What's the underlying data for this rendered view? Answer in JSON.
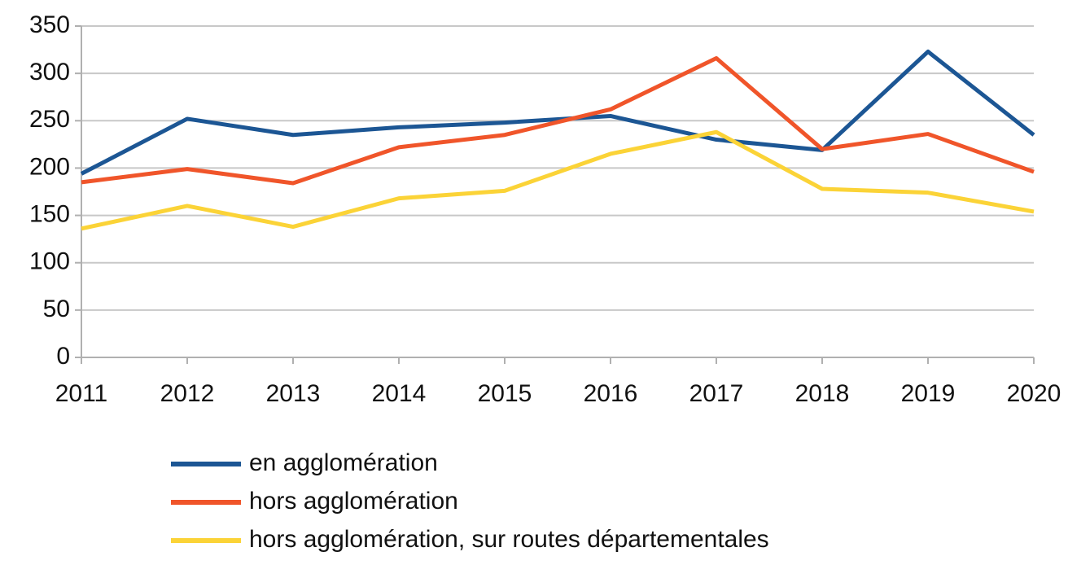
{
  "chart_data": {
    "type": "line",
    "categories": [
      "2011",
      "2012",
      "2013",
      "2014",
      "2015",
      "2016",
      "2017",
      "2018",
      "2019",
      "2020"
    ],
    "series": [
      {
        "name": "en agglomération",
        "color": "#1c5694",
        "values": [
          194,
          252,
          235,
          243,
          248,
          255,
          230,
          219,
          323,
          235
        ]
      },
      {
        "name": "hors agglomération",
        "color": "#f0552a",
        "values": [
          185,
          199,
          184,
          222,
          235,
          262,
          316,
          220,
          236,
          196
        ]
      },
      {
        "name": "hors agglomération, sur routes départementales",
        "color": "#fbd337",
        "values": [
          136,
          160,
          138,
          168,
          176,
          215,
          238,
          178,
          174,
          154
        ]
      }
    ],
    "ylim": [
      0,
      350
    ],
    "yticks": [
      0,
      50,
      100,
      150,
      200,
      250,
      300,
      350
    ],
    "grid": true,
    "legend": "bottom"
  }
}
